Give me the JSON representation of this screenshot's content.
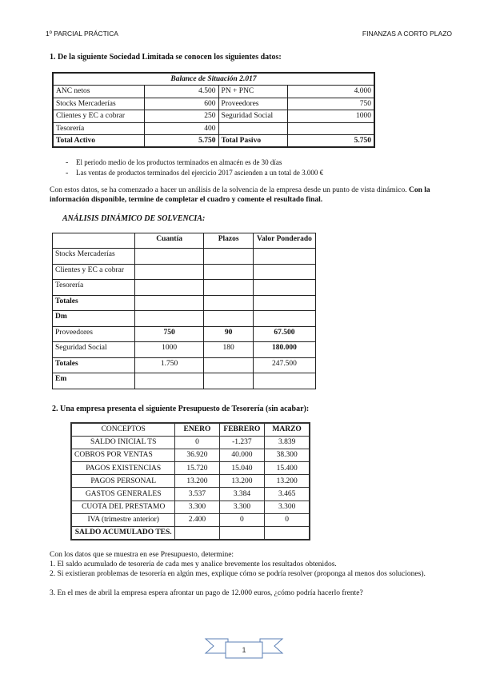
{
  "header": {
    "left": "1º PARCIAL PRÁCTICA",
    "right": "FINANZAS A CORTO PLAZO"
  },
  "q1": {
    "title": "1. De la siguiente Sociedad Limitada se conocen los siguientes datos:",
    "balance": {
      "caption": "Balance de Situación 2.017",
      "rows": [
        [
          "ANC netos",
          "4.500",
          "PN + PNC",
          "4.000"
        ],
        [
          "Stocks Mercaderías",
          "600",
          "Proveedores",
          "750"
        ],
        [
          "Clientes y EC a cobrar",
          "250",
          "Seguridad Social",
          "1000"
        ],
        [
          "Tesorería",
          "400",
          "",
          ""
        ],
        [
          "Total Activo",
          "5.750",
          "Total Pasivo",
          "5.750"
        ]
      ]
    },
    "bullets": [
      "El periodo medio de los productos terminados en almacén es de 30 días",
      "Las ventas de productos terminados del ejercicio 2017 ascienden a un total de 3.000 €"
    ],
    "paragraph_normal": "Con estos datos, se ha comenzado a hacer un análisis de la solvencia de la empresa desde un punto de vista dinámico.",
    "paragraph_bold": "Con la información disponible, termine de completar el cuadro y comente el resultado final.",
    "analysis_title": "ANÁLISIS DINÁMICO DE SOLVENCIA:",
    "analysis": {
      "headers": [
        "",
        "Cuantía",
        "Plazos",
        "Valor Ponderado"
      ],
      "rows": [
        [
          "Stocks Mercaderías",
          "",
          "",
          ""
        ],
        [
          "Clientes y EC a cobrar",
          "",
          "",
          ""
        ],
        [
          "Tesorería",
          "",
          "",
          ""
        ],
        [
          "Totales",
          "",
          "",
          ""
        ],
        [
          "Dm",
          "",
          "",
          ""
        ],
        [
          "Proveedores",
          "750",
          "90",
          "67.500"
        ],
        [
          "Seguridad Social",
          "1000",
          "180",
          "180.000"
        ],
        [
          "Totales",
          "1.750",
          "",
          "247.500"
        ],
        [
          "Em",
          "",
          "",
          ""
        ]
      ]
    }
  },
  "q2": {
    "title": "2. Una empresa presenta el siguiente Presupuesto de Tesorería (sin acabar):",
    "budget": {
      "headers": [
        "CONCEPTOS",
        "ENERO",
        "FEBRERO",
        "MARZO"
      ],
      "rows": [
        [
          "SALDO INICIAL TS",
          "0",
          "-1.237",
          "3.839"
        ],
        [
          "COBROS POR VENTAS",
          "36.920",
          "40.000",
          "38.300"
        ],
        [
          "PAGOS EXISTENCIAS",
          "15.720",
          "15.040",
          "15.400"
        ],
        [
          "PAGOS PERSONAL",
          "13.200",
          "13.200",
          "13.200"
        ],
        [
          "GASTOS GENERALES",
          "3.537",
          "3.384",
          "3.465"
        ],
        [
          "CUOTA DEL PRESTAMO",
          "3.300",
          "3.300",
          "3.300"
        ],
        [
          "IVA (trimestre anterior)",
          "2.400",
          "0",
          "0"
        ],
        [
          "SALDO ACUMULADO TES.",
          "",
          "",
          ""
        ]
      ]
    },
    "intro": "Con los datos que se muestra en ese Presupuesto, determine:",
    "questions": [
      "1. El saldo acumulado de tesorería de cada mes y analice brevemente los resultados obtenidos.",
      "2. Si existieran problemas de tesorería en algún mes, explique cómo se podría resolver (proponga al menos dos soluciones).",
      "3. En el mes de abril la empresa espera afrontar un pago de 12.000 euros, ¿cómo podría hacerlo frente?"
    ]
  },
  "footer": {
    "page_number": "1"
  },
  "colors": {
    "page_ribbon": "#5b7fb5"
  }
}
